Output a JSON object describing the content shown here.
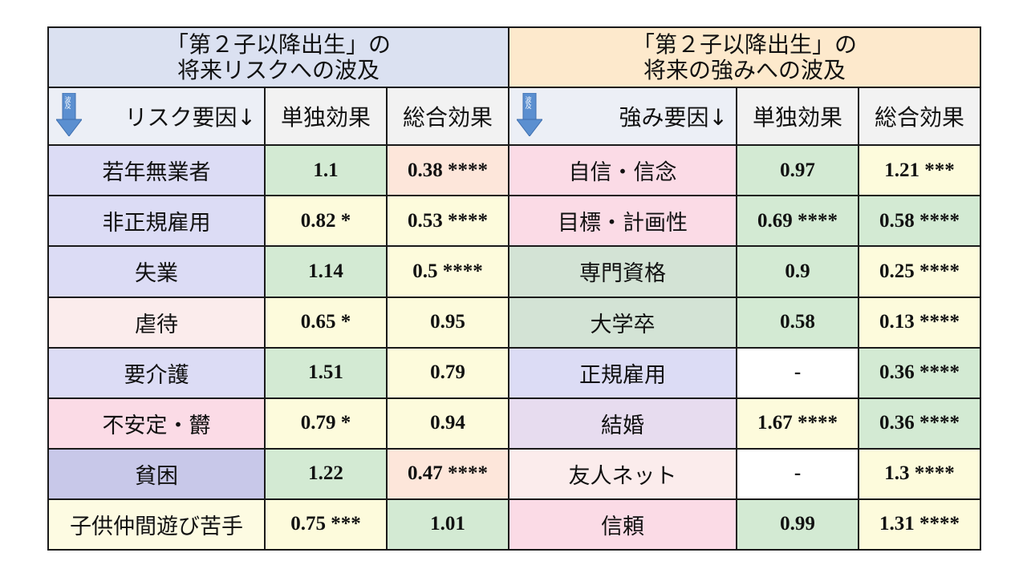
{
  "header": {
    "risk_title_line1": "「第２子以降出生」の",
    "risk_title_line2": "将来リスクへの波及",
    "strength_title_line1": "「第２子以降出生」の",
    "strength_title_line2": "将来の強みへの波及"
  },
  "columns": {
    "risk_factor_label": "リスク要因↓",
    "strength_factor_label": "強み要因↓",
    "single_effect": "単独効果",
    "total_effect": "総合効果",
    "arrow_tag": "波及"
  },
  "rows": [
    {
      "risk": "若年無業者",
      "r_single": "1.1",
      "r_total": "0.38 ****",
      "strength": "自信・信念",
      "s_single": "0.97",
      "s_total": "1.21 ***"
    },
    {
      "risk": "非正規雇用",
      "r_single": "0.82 *",
      "r_total": "0.53 ****",
      "strength": "目標・計画性",
      "s_single": "0.69 ****",
      "s_total": "0.58 ****"
    },
    {
      "risk": "失業",
      "r_single": "1.14",
      "r_total": "0.5 ****",
      "strength": "専門資格",
      "s_single": "0.9",
      "s_total": "0.25 ****"
    },
    {
      "risk": "虐待",
      "r_single": "0.65 *",
      "r_total": "0.95",
      "strength": "大学卒",
      "s_single": "0.58",
      "s_total": "0.13 ****"
    },
    {
      "risk": "要介護",
      "r_single": "1.51",
      "r_total": "0.79",
      "strength": "正規雇用",
      "s_single": "-",
      "s_total": "0.36 ****"
    },
    {
      "risk": "不安定・欝",
      "r_single": "0.79 *",
      "r_total": "0.94",
      "strength": "結婚",
      "s_single": "1.67 ****",
      "s_total": "0.36 ****"
    },
    {
      "risk": "貧困",
      "r_single": "1.22",
      "r_total": "0.47 ****",
      "strength": "友人ネット",
      "s_single": "-",
      "s_total": "1.3 ****"
    },
    {
      "risk": "子供仲間遊び苦手",
      "r_single": "0.75 ***",
      "r_total": "1.01",
      "strength": "信頼",
      "s_single": "0.99",
      "s_total": "1.31 ****"
    }
  ],
  "colors": {
    "header_risk": "#dbe1f1",
    "header_strength": "#fde9cc",
    "arrow": "#5b8fd0",
    "significant_green": "#d3ead3",
    "nonsig_yellow": "#fdfbdc",
    "peach": "#fde6da"
  }
}
